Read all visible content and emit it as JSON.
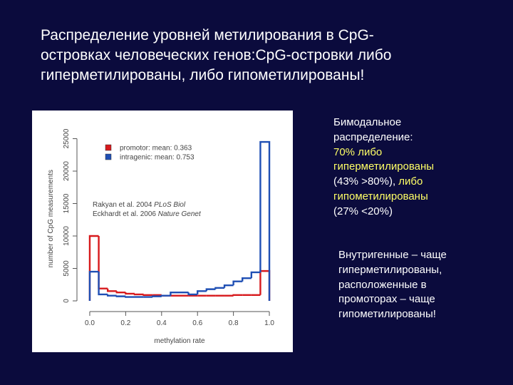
{
  "title_lines": [
    "Распределение уровней метилирования в CpG-",
    "островках человеческих генов:CpG-островки либо",
    "гиперметилированы, либо гипометилированы!"
  ],
  "chart_data": {
    "type": "step-histogram",
    "ylabel": "number of CpG measurements",
    "xlabel": "methylation rate",
    "bins": [
      0,
      0.05,
      0.1,
      0.15,
      0.2,
      0.25,
      0.3,
      0.35,
      0.4,
      0.45,
      0.5,
      0.55,
      0.6,
      0.65,
      0.7,
      0.75,
      0.8,
      0.85,
      0.9,
      0.95,
      1
    ],
    "series": [
      {
        "name": "promotor: mean: 0.363",
        "color": "#d7191c",
        "values": [
          10000,
          1900,
          1500,
          1300,
          1100,
          1000,
          900,
          900,
          800,
          800,
          800,
          800,
          800,
          800,
          800,
          800,
          900,
          900,
          900,
          4600
        ]
      },
      {
        "name": "intragenic: mean: 0.753",
        "color": "#1f4fb4",
        "values": [
          4500,
          1000,
          800,
          700,
          600,
          600,
          600,
          700,
          800,
          1300,
          1300,
          1000,
          1500,
          1800,
          2000,
          2400,
          3000,
          3500,
          4400,
          24500
        ]
      }
    ],
    "xlim": [
      -0.03,
      1.03
    ],
    "ylim": [
      -660,
      26000
    ],
    "xticks": [
      {
        "value": 0,
        "label": "0.0"
      },
      0.2,
      0.4,
      0.6,
      0.8,
      {
        "value": 1,
        "label": "1.0"
      }
    ],
    "yticks": [
      0,
      5000,
      10000,
      15000,
      20000,
      25000
    ],
    "annotation_lines": [
      [
        {
          "text": "Rakyan et al. 2004 ",
          "italic": false
        },
        {
          "text": "PLoS Biol",
          "italic": true
        }
      ],
      [
        {
          "text": "Eckhardt et al. 2006 ",
          "italic": false
        },
        {
          "text": "Nature Genet",
          "italic": true
        }
      ]
    ]
  },
  "notes": [
    {
      "lines": [
        [
          {
            "text": "Бимодальное",
            "color": "#ffffff"
          }
        ],
        [
          {
            "text": "распределение:",
            "color": "#ffffff"
          }
        ],
        [
          {
            "text": "70% либо",
            "color": "#ffff66"
          }
        ],
        [
          {
            "text": "гиперметилированы",
            "color": "#ffff66"
          }
        ],
        [
          {
            "text": "(43% >80%), ",
            "color": "#ffffff"
          },
          {
            "text": "либо",
            "color": "#ffff66"
          }
        ],
        [
          {
            "text": "гипометилированы",
            "color": "#ffff66"
          }
        ],
        [
          {
            "text": "(27% <20%)",
            "color": "#ffffff"
          }
        ]
      ]
    },
    {
      "lines": [
        [
          {
            "text": "Внутригенные – чаще",
            "color": "#ffffff"
          }
        ],
        [
          {
            "text": "гиперметилированы,",
            "color": "#ffffff"
          }
        ],
        [
          {
            "text": "расположенные в",
            "color": "#ffffff"
          }
        ],
        [
          {
            "text": "промоторах – чаще",
            "color": "#ffffff"
          }
        ],
        [
          {
            "text": "гипометилированы!",
            "color": "#ffffff"
          }
        ]
      ]
    }
  ]
}
